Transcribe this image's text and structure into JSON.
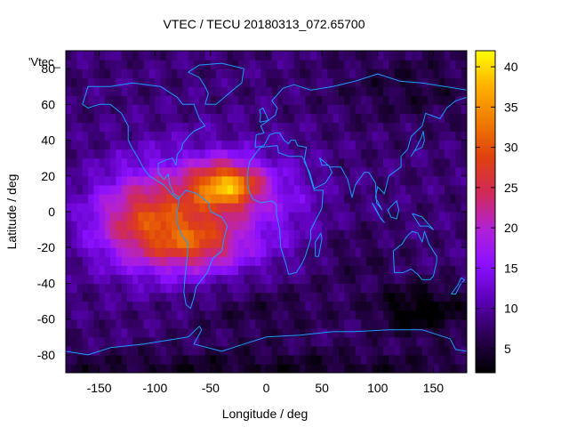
{
  "chart_data": {
    "type": "heatmap",
    "title": "VTEC / TECU 20180313_072.65700",
    "xlabel": "Longitude / deg",
    "ylabel": "Latitude / deg",
    "key_label": "'Vtec_",
    "xlim": [
      -180,
      180
    ],
    "ylim": [
      -90,
      90
    ],
    "x_ticks": [
      -150,
      -100,
      -50,
      0,
      50,
      100,
      150
    ],
    "y_ticks": [
      -80,
      -60,
      -40,
      -20,
      0,
      20,
      40,
      60,
      80
    ],
    "colorbar": {
      "range": [
        2,
        42
      ],
      "ticks": [
        5,
        10,
        15,
        20,
        25,
        30,
        35,
        40
      ],
      "palette": [
        "#000000",
        "#2a0050",
        "#5a00b4",
        "#8a10ff",
        "#b020d8",
        "#d02a5a",
        "#e04010",
        "#f07a00",
        "#ffb000",
        "#ffff00"
      ]
    },
    "grid_resolution_deg": {
      "lon": 5,
      "lat": 5
    },
    "background_vtec": 8,
    "features": [
      {
        "name": "equatorial-anomaly-west",
        "lon": -110,
        "lat": -5,
        "amp": 14,
        "sigma_lon": 35,
        "sigma_lat": 18
      },
      {
        "name": "south-american-crest",
        "lon": -60,
        "lat": -18,
        "amp": 10,
        "sigma_lon": 30,
        "sigma_lat": 10
      },
      {
        "name": "atlantic-crest-peak",
        "lon": -35,
        "lat": 15,
        "amp": 22,
        "sigma_lon": 22,
        "sigma_lat": 9
      },
      {
        "name": "equatorial-band",
        "lon": -60,
        "lat": 0,
        "amp": 10,
        "sigma_lon": 50,
        "sigma_lat": 25
      },
      {
        "name": "africa-tail",
        "lon": 20,
        "lat": 5,
        "amp": 3,
        "sigma_lon": 25,
        "sigma_lat": 20
      },
      {
        "name": "south-pacific-low",
        "lon": 140,
        "lat": -55,
        "amp": -7,
        "sigma_lon": 30,
        "sigma_lat": 10
      },
      {
        "name": "south-atlantic-low",
        "lon": -10,
        "lat": -55,
        "amp": -3,
        "sigma_lon": 50,
        "sigma_lat": 12
      },
      {
        "name": "polar-south-low",
        "lon": 0,
        "lat": -88,
        "amp": -4,
        "sigma_lon": 200,
        "sigma_lat": 8
      },
      {
        "name": "north-asia-low",
        "lon": 130,
        "lat": 70,
        "amp": -3,
        "sigma_lon": 50,
        "sigma_lat": 15
      },
      {
        "name": "south-indian-dip",
        "lon": 80,
        "lat": -25,
        "amp": -2,
        "sigma_lon": 30,
        "sigma_lat": 12
      }
    ],
    "coastlines": [
      {
        "name": "north-america",
        "points": [
          [
            -165,
            60
          ],
          [
            -160,
            70
          ],
          [
            -140,
            70
          ],
          [
            -120,
            72
          ],
          [
            -95,
            70
          ],
          [
            -80,
            64
          ],
          [
            -75,
            60
          ],
          [
            -65,
            60
          ],
          [
            -60,
            52
          ],
          [
            -55,
            48
          ],
          [
            -65,
            45
          ],
          [
            -70,
            42
          ],
          [
            -75,
            38
          ],
          [
            -76,
            35
          ],
          [
            -80,
            32
          ],
          [
            -81,
            26
          ],
          [
            -84,
            30
          ],
          [
            -90,
            29
          ],
          [
            -97,
            27
          ],
          [
            -97,
            22
          ],
          [
            -92,
            18
          ],
          [
            -88,
            21
          ],
          [
            -87,
            16
          ],
          [
            -83,
            10
          ],
          [
            -78,
            8
          ],
          [
            -80,
            7
          ],
          [
            -85,
            10
          ],
          [
            -92,
            15
          ],
          [
            -105,
            20
          ],
          [
            -110,
            24
          ],
          [
            -115,
            30
          ],
          [
            -120,
            35
          ],
          [
            -124,
            40
          ],
          [
            -124,
            48
          ],
          [
            -130,
            55
          ],
          [
            -140,
            60
          ],
          [
            -150,
            60
          ],
          [
            -160,
            58
          ],
          [
            -165,
            60
          ]
        ]
      },
      {
        "name": "greenland",
        "points": [
          [
            -55,
            60
          ],
          [
            -45,
            60
          ],
          [
            -30,
            68
          ],
          [
            -22,
            72
          ],
          [
            -20,
            80
          ],
          [
            -40,
            83
          ],
          [
            -60,
            82
          ],
          [
            -70,
            78
          ],
          [
            -60,
            75
          ],
          [
            -55,
            70
          ],
          [
            -52,
            66
          ],
          [
            -55,
            60
          ]
        ]
      },
      {
        "name": "south-america",
        "points": [
          [
            -78,
            8
          ],
          [
            -72,
            12
          ],
          [
            -62,
            10
          ],
          [
            -52,
            5
          ],
          [
            -50,
            0
          ],
          [
            -40,
            -3
          ],
          [
            -35,
            -8
          ],
          [
            -38,
            -15
          ],
          [
            -40,
            -22
          ],
          [
            -48,
            -26
          ],
          [
            -53,
            -34
          ],
          [
            -58,
            -38
          ],
          [
            -63,
            -42
          ],
          [
            -65,
            -48
          ],
          [
            -68,
            -54
          ],
          [
            -72,
            -52
          ],
          [
            -74,
            -45
          ],
          [
            -73,
            -37
          ],
          [
            -71,
            -25
          ],
          [
            -70,
            -18
          ],
          [
            -76,
            -13
          ],
          [
            -81,
            -5
          ],
          [
            -80,
            0
          ],
          [
            -78,
            8
          ]
        ]
      },
      {
        "name": "europe-asia",
        "points": [
          [
            -10,
            36
          ],
          [
            -9,
            43
          ],
          [
            -2,
            44
          ],
          [
            -5,
            48
          ],
          [
            2,
            51
          ],
          [
            8,
            54
          ],
          [
            10,
            58
          ],
          [
            5,
            62
          ],
          [
            15,
            69
          ],
          [
            25,
            71
          ],
          [
            40,
            68
          ],
          [
            60,
            70
          ],
          [
            80,
            73
          ],
          [
            100,
            77
          ],
          [
            120,
            73
          ],
          [
            140,
            72
          ],
          [
            160,
            70
          ],
          [
            180,
            68
          ],
          [
            180,
            64
          ],
          [
            170,
            62
          ],
          [
            162,
            58
          ],
          [
            156,
            52
          ],
          [
            143,
            55
          ],
          [
            140,
            48
          ],
          [
            130,
            42
          ],
          [
            127,
            35
          ],
          [
            121,
            31
          ],
          [
            121,
            25
          ],
          [
            110,
            20
          ],
          [
            106,
            10
          ],
          [
            100,
            14
          ],
          [
            98,
            8
          ],
          [
            104,
            1
          ],
          [
            99,
            5
          ],
          [
            98,
            16
          ],
          [
            92,
            22
          ],
          [
            88,
            22
          ],
          [
            80,
            15
          ],
          [
            77,
            8
          ],
          [
            73,
            18
          ],
          [
            67,
            25
          ],
          [
            57,
            25
          ],
          [
            52,
            28
          ],
          [
            48,
            30
          ],
          [
            50,
            26
          ],
          [
            56,
            26
          ],
          [
            59,
            22
          ],
          [
            53,
            16
          ],
          [
            43,
            13
          ],
          [
            39,
            22
          ],
          [
            34,
            28
          ],
          [
            35,
            32
          ],
          [
            36,
            36
          ],
          [
            28,
            37
          ],
          [
            26,
            40
          ],
          [
            22,
            40
          ],
          [
            20,
            38
          ],
          [
            16,
            40
          ],
          [
            12,
            44
          ],
          [
            8,
            44
          ],
          [
            3,
            43
          ],
          [
            -2,
            37
          ],
          [
            -10,
            36
          ]
        ]
      },
      {
        "name": "africa",
        "points": [
          [
            -17,
            21
          ],
          [
            -15,
            28
          ],
          [
            -9,
            33
          ],
          [
            -5,
            36
          ],
          [
            10,
            37
          ],
          [
            11,
            33
          ],
          [
            20,
            31
          ],
          [
            32,
            31
          ],
          [
            35,
            28
          ],
          [
            39,
            20
          ],
          [
            43,
            12
          ],
          [
            51,
            12
          ],
          [
            50,
            2
          ],
          [
            40,
            -10
          ],
          [
            40,
            -15
          ],
          [
            35,
            -25
          ],
          [
            32,
            -29
          ],
          [
            27,
            -34
          ],
          [
            20,
            -35
          ],
          [
            18,
            -30
          ],
          [
            13,
            -20
          ],
          [
            12,
            -10
          ],
          [
            9,
            -1
          ],
          [
            9,
            4
          ],
          [
            5,
            6
          ],
          [
            -5,
            5
          ],
          [
            -12,
            7
          ],
          [
            -17,
            14
          ],
          [
            -17,
            21
          ]
        ]
      },
      {
        "name": "madagascar",
        "points": [
          [
            44,
            -25
          ],
          [
            47,
            -25
          ],
          [
            50,
            -15
          ],
          [
            49,
            -12
          ],
          [
            44,
            -17
          ],
          [
            44,
            -25
          ]
        ]
      },
      {
        "name": "australia",
        "points": [
          [
            114,
            -22
          ],
          [
            115,
            -34
          ],
          [
            123,
            -34
          ],
          [
            130,
            -32
          ],
          [
            136,
            -35
          ],
          [
            140,
            -38
          ],
          [
            147,
            -38
          ],
          [
            150,
            -36
          ],
          [
            153,
            -28
          ],
          [
            153,
            -25
          ],
          [
            146,
            -18
          ],
          [
            142,
            -11
          ],
          [
            140,
            -17
          ],
          [
            136,
            -12
          ],
          [
            131,
            -11
          ],
          [
            126,
            -14
          ],
          [
            122,
            -18
          ],
          [
            114,
            -22
          ]
        ]
      },
      {
        "name": "new-zealand",
        "points": [
          [
            166,
            -46
          ],
          [
            172,
            -41
          ],
          [
            175,
            -37
          ],
          [
            178,
            -38
          ],
          [
            174,
            -41
          ],
          [
            170,
            -46
          ],
          [
            166,
            -46
          ]
        ]
      },
      {
        "name": "british-isles",
        "points": [
          [
            -6,
            50
          ],
          [
            2,
            51
          ],
          [
            0,
            54
          ],
          [
            -3,
            58
          ],
          [
            -6,
            57
          ],
          [
            -5,
            54
          ],
          [
            -6,
            50
          ]
        ]
      },
      {
        "name": "japan",
        "points": [
          [
            130,
            31
          ],
          [
            133,
            34
          ],
          [
            140,
            36
          ],
          [
            142,
            40
          ],
          [
            141,
            45
          ],
          [
            139,
            41
          ],
          [
            134,
            35
          ],
          [
            130,
            31
          ]
        ]
      },
      {
        "name": "borneo",
        "points": [
          [
            109,
            1
          ],
          [
            112,
            -3
          ],
          [
            117,
            -4
          ],
          [
            119,
            1
          ],
          [
            117,
            6
          ],
          [
            112,
            3
          ],
          [
            109,
            1
          ]
        ]
      },
      {
        "name": "sumatra",
        "points": [
          [
            95,
            5
          ],
          [
            101,
            -2
          ],
          [
            106,
            -6
          ],
          [
            103,
            -4
          ],
          [
            98,
            2
          ],
          [
            95,
            5
          ]
        ]
      },
      {
        "name": "new-guinea",
        "points": [
          [
            131,
            -1
          ],
          [
            140,
            -3
          ],
          [
            150,
            -10
          ],
          [
            145,
            -8
          ],
          [
            138,
            -8
          ],
          [
            131,
            -1
          ]
        ]
      },
      {
        "name": "antarctica",
        "points": [
          [
            -180,
            -78
          ],
          [
            -160,
            -80
          ],
          [
            -140,
            -76
          ],
          [
            -110,
            -74
          ],
          [
            -90,
            -72
          ],
          [
            -70,
            -70
          ],
          [
            -60,
            -64
          ],
          [
            -58,
            -66
          ],
          [
            -65,
            -74
          ],
          [
            -40,
            -78
          ],
          [
            -20,
            -74
          ],
          [
            0,
            -70
          ],
          [
            30,
            -69
          ],
          [
            60,
            -67
          ],
          [
            80,
            -67
          ],
          [
            110,
            -66
          ],
          [
            140,
            -66
          ],
          [
            165,
            -71
          ],
          [
            170,
            -77
          ],
          [
            180,
            -78
          ]
        ]
      }
    ]
  }
}
